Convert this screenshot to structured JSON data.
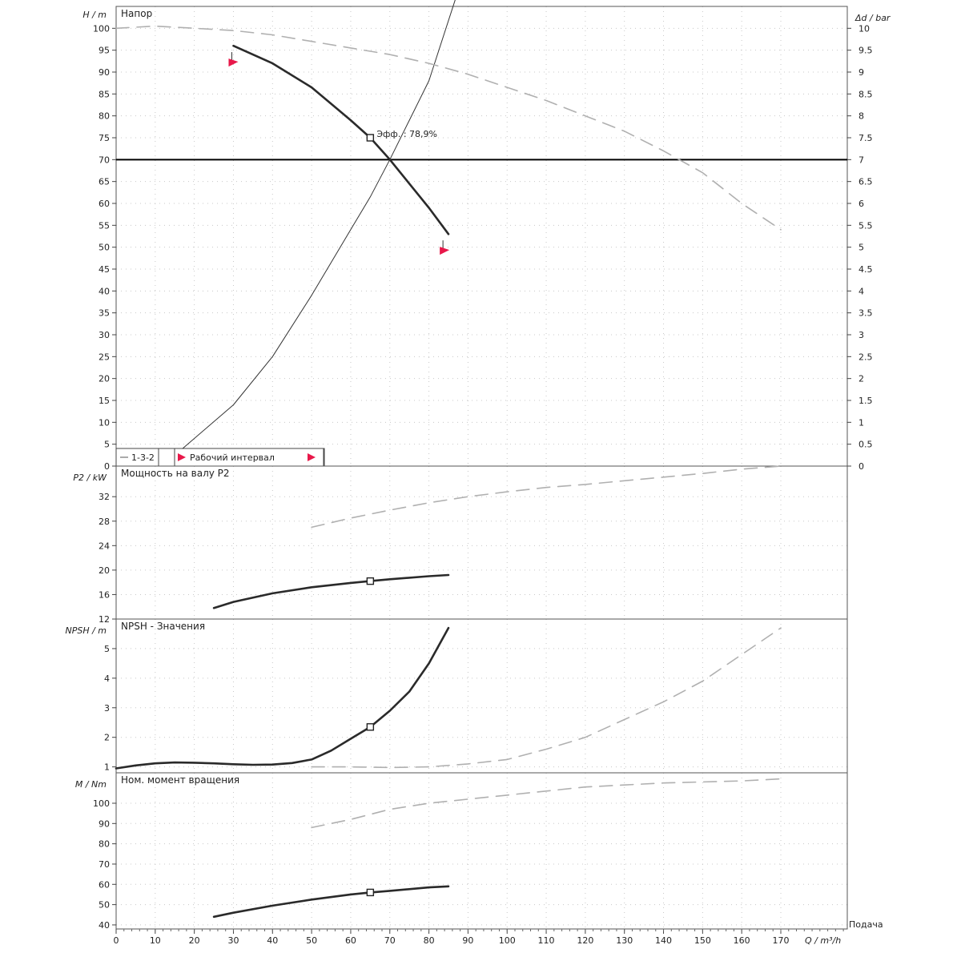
{
  "chart_data": [
    {
      "type": "line",
      "title": "Напор",
      "ylabel": "H / m",
      "y2label": "Δd / bar",
      "ylim": [
        0,
        105
      ],
      "y2lim": [
        0,
        10.5
      ],
      "yticks": [
        0,
        5,
        10,
        15,
        20,
        25,
        30,
        35,
        40,
        45,
        50,
        55,
        60,
        65,
        70,
        75,
        80,
        85,
        90,
        95,
        100
      ],
      "y2ticks": [
        "0",
        "0.5",
        "1",
        "1.5",
        "2",
        "2.5",
        "3",
        "3.5",
        "4",
        "4.5",
        "5",
        "5.5",
        "6",
        "6.5",
        "7",
        "7.5",
        "8",
        "8.5",
        "9",
        "9.5",
        "10"
      ],
      "grid": true,
      "duty_head": 70,
      "series": [
        {
          "name": "",
          "style": "thick",
          "x": [
            30,
            40,
            50,
            60,
            65,
            70,
            75,
            80,
            85
          ],
          "y": [
            96,
            92,
            86.5,
            79,
            75,
            70,
            64.5,
            59,
            53
          ]
        },
        {
          "name": "",
          "style": "thin-system",
          "x": [
            17,
            30,
            40,
            50,
            60,
            65,
            70,
            75,
            80,
            88
          ],
          "y": [
            4,
            14,
            25,
            39,
            54,
            61.5,
            70,
            79,
            88,
            110
          ]
        },
        {
          "name": "",
          "style": "dashed",
          "x": [
            0,
            10,
            20,
            30,
            40,
            50,
            60,
            70,
            80,
            90,
            100,
            110,
            120,
            130,
            140,
            150,
            160,
            170
          ],
          "y": [
            100,
            100.5,
            100,
            99.5,
            98.5,
            97,
            95.5,
            94,
            92,
            89.5,
            86.5,
            83.5,
            80,
            76.5,
            72,
            67,
            60,
            54
          ]
        }
      ],
      "operating_point": {
        "x": 65,
        "y": 75,
        "label": "Эфф. : 78,9%"
      },
      "limit_markers": [
        {
          "x": 30,
          "y": 92
        },
        {
          "x": 84,
          "y": 49
        }
      ],
      "legend": [
        {
          "label": "1-3-2"
        },
        {
          "label": "Рабочий интервал"
        }
      ],
      "legend_position": "bottom-left"
    },
    {
      "type": "line",
      "title": "Мощность на валу P2",
      "ylabel": "P2 / kW",
      "ylim": [
        12,
        37
      ],
      "yticks": [
        12,
        16,
        20,
        24,
        28,
        32
      ],
      "grid": true,
      "series": [
        {
          "name": "",
          "style": "thick",
          "x": [
            25,
            30,
            40,
            50,
            60,
            65,
            70,
            80,
            85
          ],
          "y": [
            13.8,
            14.8,
            16.2,
            17.2,
            17.9,
            18.2,
            18.5,
            19.0,
            19.2
          ]
        },
        {
          "name": "",
          "style": "dashed",
          "x": [
            50,
            60,
            70,
            80,
            90,
            100,
            110,
            120,
            130,
            140,
            150,
            160,
            170
          ],
          "y": [
            27,
            28.5,
            29.8,
            31.0,
            32,
            32.8,
            33.5,
            34,
            34.6,
            35.2,
            35.8,
            36.5,
            37
          ]
        }
      ],
      "operating_point": {
        "x": 65,
        "y": 18.2
      }
    },
    {
      "type": "line",
      "title": "NPSH - Значения",
      "ylabel": "NPSH / m",
      "ylim": [
        0.8,
        6
      ],
      "yticks": [
        1,
        2,
        3,
        4,
        5
      ],
      "grid": true,
      "series": [
        {
          "name": "",
          "style": "thick",
          "x": [
            0,
            5,
            10,
            15,
            20,
            25,
            30,
            35,
            40,
            45,
            50,
            55,
            60,
            65,
            70,
            75,
            80,
            85
          ],
          "y": [
            0.95,
            1.05,
            1.12,
            1.15,
            1.14,
            1.12,
            1.09,
            1.07,
            1.08,
            1.13,
            1.25,
            1.55,
            1.95,
            2.35,
            2.9,
            3.55,
            4.5,
            5.7
          ]
        },
        {
          "name": "",
          "style": "dashed",
          "x": [
            50,
            60,
            70,
            80,
            90,
            100,
            110,
            120,
            130,
            140,
            150,
            160,
            170
          ],
          "y": [
            1.0,
            1.0,
            0.98,
            1.0,
            1.1,
            1.25,
            1.6,
            2.0,
            2.6,
            3.2,
            3.9,
            4.8,
            5.7
          ]
        }
      ],
      "operating_point": {
        "x": 65,
        "y": 2.35
      }
    },
    {
      "type": "line",
      "title": "Ном. момент вращения",
      "ylabel": "M / Nm",
      "ylim": [
        38,
        115
      ],
      "yticks": [
        40,
        50,
        60,
        70,
        80,
        90,
        100
      ],
      "grid": true,
      "series": [
        {
          "name": "",
          "style": "thick",
          "x": [
            25,
            30,
            40,
            50,
            60,
            65,
            70,
            80,
            85
          ],
          "y": [
            44,
            46,
            49.5,
            52.5,
            55,
            56,
            56.8,
            58.5,
            59
          ]
        },
        {
          "name": "",
          "style": "dashed",
          "x": [
            50,
            60,
            70,
            80,
            90,
            100,
            110,
            120,
            130,
            140,
            150,
            160,
            170
          ],
          "y": [
            88,
            92,
            97,
            100,
            102,
            104,
            106,
            108,
            109,
            110,
            110.5,
            111,
            112
          ]
        }
      ],
      "operating_point": {
        "x": 65,
        "y": 56
      }
    }
  ],
  "xaxis": {
    "label": "Q / m³/h",
    "label_right": "Подача",
    "ticks": [
      0,
      10,
      20,
      30,
      40,
      50,
      60,
      70,
      80,
      90,
      100,
      110,
      120,
      130,
      140,
      150,
      160,
      170
    ],
    "xlim": [
      0,
      187
    ]
  },
  "colors": {
    "curve": "#2a2a2a",
    "dashed": "#b0b0b0",
    "grid": "#c8c8c8",
    "marker": "#e8184a",
    "duty_line": "#000000"
  }
}
